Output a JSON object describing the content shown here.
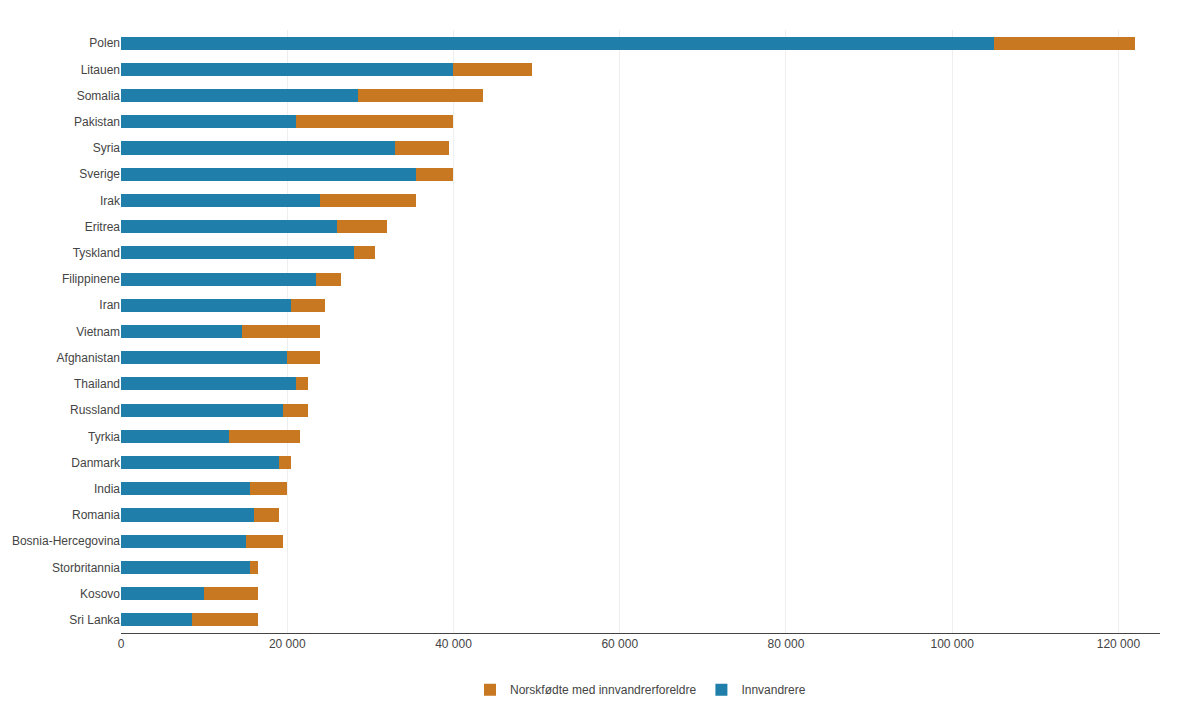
{
  "chart_data": {
    "type": "bar",
    "orientation": "horizontal",
    "stacked": true,
    "categories": [
      "Polen",
      "Litauen",
      "Somalia",
      "Pakistan",
      "Syria",
      "Sverige",
      "Irak",
      "Eritrea",
      "Tyskland",
      "Filippinene",
      "Iran",
      "Vietnam",
      "Afghanistan",
      "Thailand",
      "Russland",
      "Tyrkia",
      "Danmark",
      "India",
      "Romania",
      "Bosnia-Hercegovina",
      "Storbritannia",
      "Kosovo",
      "Sri Lanka"
    ],
    "series": [
      {
        "name": "Innvandrere",
        "color": "#1f7faa",
        "values": [
          105000,
          40000,
          28500,
          21000,
          33000,
          35500,
          24000,
          26000,
          28000,
          23500,
          20500,
          14500,
          20000,
          21000,
          19500,
          13000,
          19000,
          15500,
          16000,
          15000,
          15500,
          10000,
          8500
        ]
      },
      {
        "name": "Norskfødte med innvandrerforeldre",
        "color": "#c87820",
        "values": [
          17000,
          9500,
          15000,
          19000,
          6500,
          4500,
          11500,
          6000,
          2500,
          3000,
          4000,
          9500,
          4000,
          1500,
          3000,
          8500,
          1500,
          4500,
          3000,
          4500,
          1000,
          6500,
          8000
        ]
      }
    ],
    "xlim": [
      0,
      125000
    ],
    "xticks": [
      0,
      {
        "value": 20000,
        "label": "20 000"
      },
      {
        "value": 40000,
        "label": "40 000"
      },
      {
        "value": 60000,
        "label": "60 000"
      },
      {
        "value": 80000,
        "label": "80 000"
      },
      {
        "value": 100000,
        "label": "100 000"
      },
      {
        "value": 120000,
        "label": "120 000"
      }
    ],
    "grid": true,
    "legend": "bottom"
  }
}
